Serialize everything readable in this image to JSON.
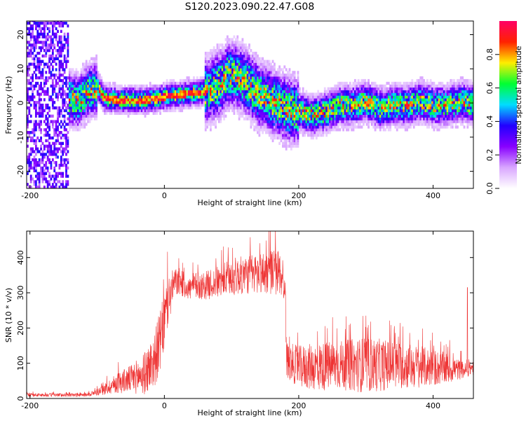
{
  "title": "S120.2023.090.22.47.G08",
  "chart_data": [
    {
      "type": "heatmap",
      "xlabel": "Height of straight line (km)",
      "ylabel": "Frequency (Hz)",
      "xlim": [
        -205,
        460
      ],
      "ylim": [
        -25,
        24
      ],
      "x_ticks": [
        -200,
        0,
        200,
        400
      ],
      "x_tick_labels": [
        "-200",
        "0",
        "200",
        "400"
      ],
      "y_ticks": [
        -20,
        -10,
        0,
        10,
        20
      ],
      "y_tick_labels": [
        "-20",
        "-10",
        "0",
        "10",
        "20"
      ],
      "colorbar": {
        "label": "Normalized spectral amplitude",
        "range": [
          0,
          1
        ],
        "ticks": [
          0.0,
          0.2,
          0.4,
          0.6,
          0.8
        ],
        "tick_labels": [
          "0.0",
          "0.2",
          "0.4",
          "0.6",
          "0.8"
        ],
        "colors": [
          "#ffffff",
          "#d9a6ff",
          "#8800ff",
          "#2200ff",
          "#00ddff",
          "#00ff33",
          "#ffee00",
          "#ff2200",
          "#ff0066"
        ]
      },
      "ridge": {
        "x": [
          -145,
          -130,
          -115,
          -100,
          -90,
          -70,
          -50,
          -30,
          -10,
          0,
          20,
          40,
          60,
          80,
          95,
          110,
          125,
          140,
          160,
          180,
          200,
          220,
          240,
          260,
          280,
          300,
          320,
          340,
          360,
          380,
          400,
          420,
          440,
          460
        ],
        "y": [
          1,
          0,
          3,
          4,
          1,
          0.5,
          0.5,
          0.5,
          1,
          1.5,
          2,
          2.5,
          3,
          5,
          8,
          7,
          5,
          2,
          0,
          -2,
          -3,
          -4,
          -3,
          -1,
          -1,
          0,
          -2,
          -1,
          -1,
          0,
          -1,
          -1,
          0,
          -1
        ]
      },
      "noise_region_x": [
        -205,
        -143
      ],
      "grid": false,
      "legend": "none"
    },
    {
      "type": "line",
      "xlabel": "Height of straight line (km)",
      "ylabel": "SNR (10 * v/v)",
      "xlim": [
        -205,
        460
      ],
      "ylim": [
        0,
        475
      ],
      "x_ticks": [
        -200,
        0,
        200,
        400
      ],
      "x_tick_labels": [
        "-200",
        "0",
        "200",
        "400"
      ],
      "y_ticks": [
        0,
        100,
        200,
        300,
        400
      ],
      "y_tick_labels": [
        "0",
        "100",
        "200",
        "300",
        "400"
      ],
      "series": [
        {
          "color": "#ee3333",
          "envelope": {
            "x": [
              -205,
              -120,
              -105,
              -90,
              -70,
              -50,
              -30,
              -15,
              -5,
              5,
              15,
              25,
              35,
              45,
              60,
              80,
              100,
              120,
              140,
              160,
              175,
              180,
              182,
              200,
              230,
              260,
              300,
              340,
              380,
              420,
              450,
              455,
              460
            ],
            "mean": [
              10,
              10,
              15,
              25,
              45,
              55,
              70,
              110,
              170,
              270,
              330,
              330,
              310,
              320,
              320,
              330,
              345,
              350,
              355,
              360,
              355,
              300,
              110,
              90,
              90,
              95,
              95,
              95,
              90,
              85,
              80,
              85,
              90
            ],
            "spread": [
              5,
              5,
              8,
              15,
              30,
              40,
              60,
              80,
              90,
              80,
              40,
              40,
              30,
              40,
              40,
              45,
              55,
              55,
              60,
              65,
              70,
              40,
              50,
              60,
              70,
              70,
              80,
              70,
              60,
              45,
              20,
              20,
              25
            ]
          },
          "spike": {
            "x": 451,
            "y": 315
          }
        }
      ],
      "grid": false,
      "legend": "none"
    }
  ]
}
